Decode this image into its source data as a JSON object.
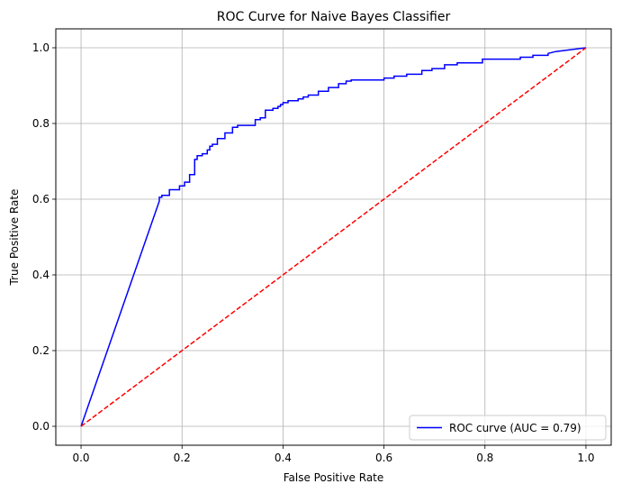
{
  "chart_data": {
    "type": "line",
    "title": "ROC Curve for Naive Bayes Classifier",
    "xlabel": "False Positive Rate",
    "ylabel": "True Positive Rate",
    "xlim": [
      -0.05,
      1.05
    ],
    "ylim": [
      -0.05,
      1.05
    ],
    "xticks": [
      0.0,
      0.2,
      0.4,
      0.6,
      0.8,
      1.0
    ],
    "yticks": [
      0.0,
      0.2,
      0.4,
      0.6,
      0.8,
      1.0
    ],
    "xtick_labels": [
      "0.0",
      "0.2",
      "0.4",
      "0.6",
      "0.8",
      "1.0"
    ],
    "ytick_labels": [
      "0.0",
      "0.2",
      "0.4",
      "0.6",
      "0.8",
      "1.0"
    ],
    "grid": true,
    "legend_position": "lower-right",
    "series": [
      {
        "name": "ROC curve (AUC = 0.79)",
        "color": "#0000ff",
        "style": "solid",
        "x": [
          0.0,
          0.155,
          0.155,
          0.16,
          0.16,
          0.175,
          0.175,
          0.195,
          0.195,
          0.205,
          0.205,
          0.215,
          0.215,
          0.225,
          0.225,
          0.23,
          0.23,
          0.24,
          0.24,
          0.25,
          0.25,
          0.255,
          0.255,
          0.26,
          0.26,
          0.27,
          0.27,
          0.285,
          0.285,
          0.3,
          0.3,
          0.31,
          0.31,
          0.345,
          0.345,
          0.355,
          0.355,
          0.365,
          0.365,
          0.38,
          0.38,
          0.39,
          0.39,
          0.395,
          0.395,
          0.4,
          0.4,
          0.41,
          0.41,
          0.43,
          0.43,
          0.44,
          0.44,
          0.45,
          0.45,
          0.47,
          0.47,
          0.49,
          0.49,
          0.51,
          0.51,
          0.525,
          0.525,
          0.535,
          0.535,
          0.6,
          0.6,
          0.62,
          0.62,
          0.645,
          0.645,
          0.675,
          0.675,
          0.695,
          0.695,
          0.72,
          0.72,
          0.745,
          0.745,
          0.795,
          0.795,
          0.87,
          0.87,
          0.895,
          0.895,
          0.925,
          0.925,
          0.94,
          1.0
        ],
        "y": [
          0.0,
          0.595,
          0.605,
          0.605,
          0.61,
          0.61,
          0.625,
          0.625,
          0.635,
          0.635,
          0.645,
          0.645,
          0.665,
          0.665,
          0.705,
          0.705,
          0.715,
          0.715,
          0.72,
          0.72,
          0.73,
          0.73,
          0.74,
          0.74,
          0.745,
          0.745,
          0.76,
          0.76,
          0.775,
          0.775,
          0.79,
          0.79,
          0.795,
          0.795,
          0.81,
          0.81,
          0.815,
          0.815,
          0.835,
          0.835,
          0.84,
          0.84,
          0.845,
          0.845,
          0.85,
          0.85,
          0.855,
          0.855,
          0.86,
          0.86,
          0.865,
          0.865,
          0.87,
          0.87,
          0.875,
          0.875,
          0.885,
          0.885,
          0.895,
          0.895,
          0.905,
          0.905,
          0.912,
          0.912,
          0.915,
          0.915,
          0.92,
          0.92,
          0.925,
          0.925,
          0.93,
          0.93,
          0.94,
          0.94,
          0.945,
          0.945,
          0.955,
          0.955,
          0.96,
          0.96,
          0.97,
          0.97,
          0.975,
          0.975,
          0.98,
          0.98,
          0.985,
          0.99,
          1.0
        ]
      },
      {
        "name": "",
        "color": "#ff0000",
        "style": "dashed",
        "x": [
          0.0,
          1.0
        ],
        "y": [
          0.0,
          1.0
        ]
      }
    ]
  }
}
